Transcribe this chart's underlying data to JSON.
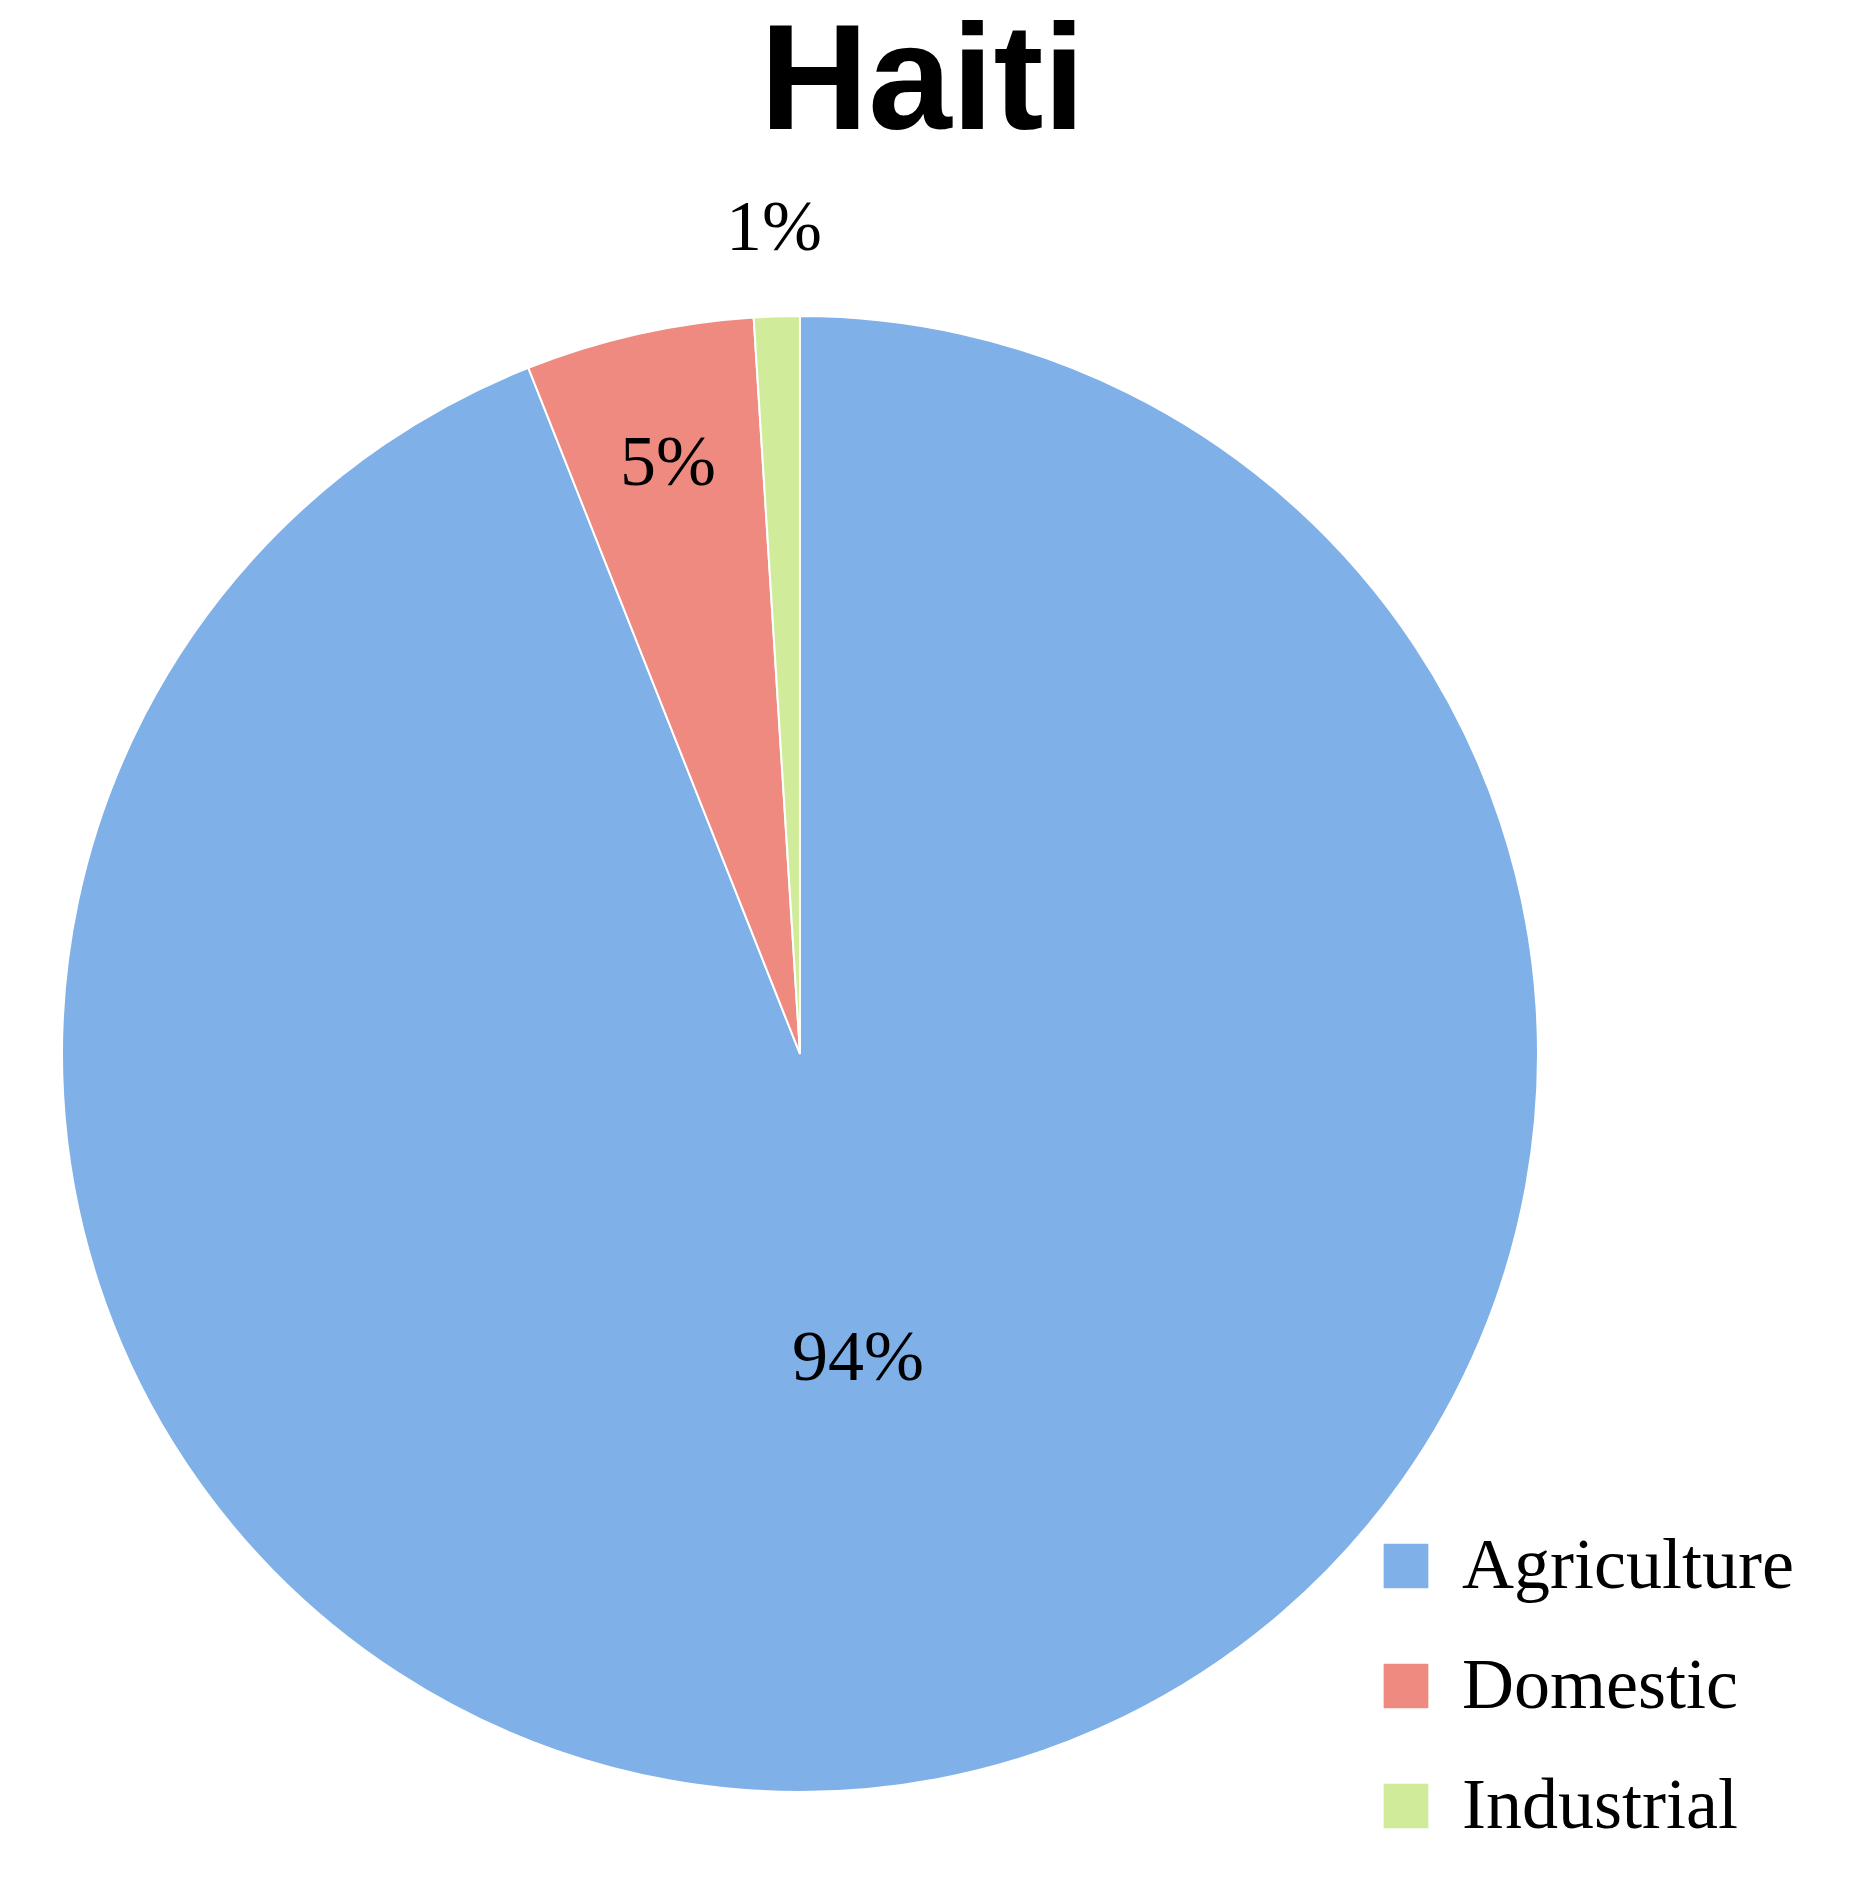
{
  "chart_data": {
    "type": "pie",
    "title": "Haiti",
    "categories": [
      "Agriculture",
      "Domestic",
      "Industrial"
    ],
    "values": [
      94,
      5,
      1
    ],
    "colors": [
      "#7fb0e8",
      "#ef8a80",
      "#d0ec9a"
    ],
    "value_labels": [
      "94%",
      "5%",
      "1%"
    ],
    "legend": "bottom right"
  }
}
